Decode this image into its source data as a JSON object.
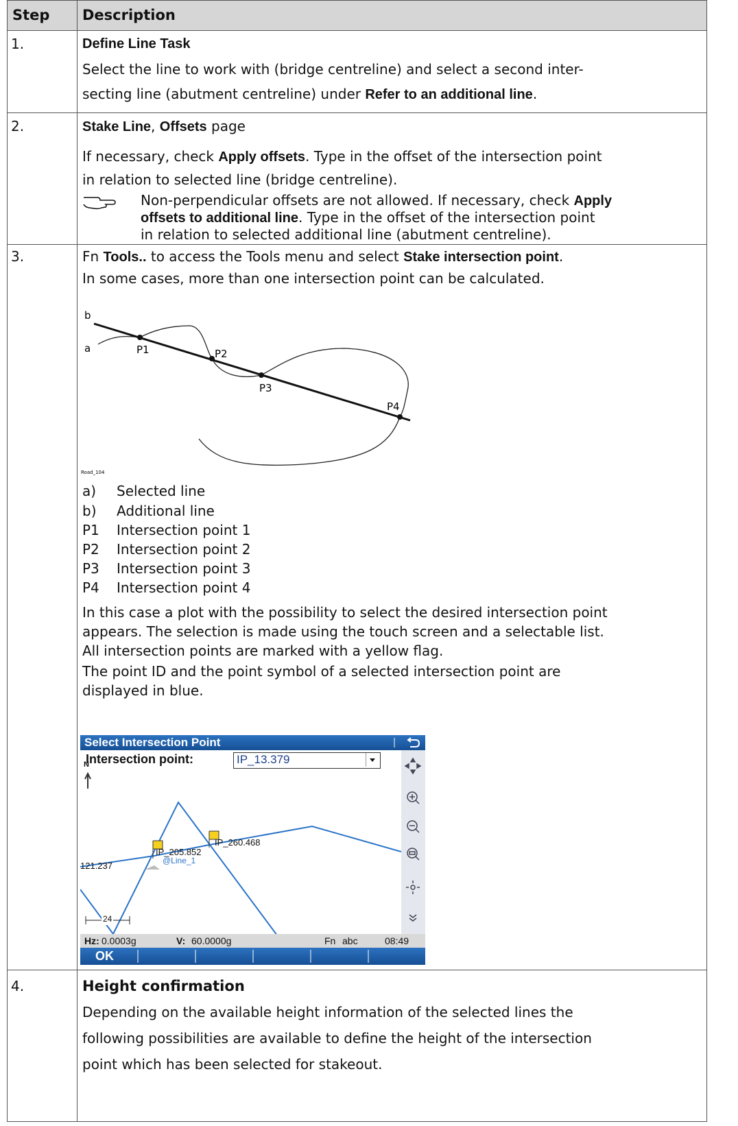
{
  "header": {
    "step": "Step",
    "description": "Description"
  },
  "rows": [
    {
      "step": "1.",
      "title": "Define Line Task",
      "lines": [
        [
          "Select the line to work with (bridge centreline) and select a second inter-"
        ],
        [
          "secting line (abutment centreline) under ",
          "Refer to an additional line",
          "."
        ]
      ]
    },
    {
      "step": "2.",
      "title": [
        "Stake Line",
        ", ",
        "Offsets",
        " page"
      ],
      "lines": [
        [
          "If necessary, check ",
          "Apply offsets",
          ". Type in the offset of the intersection point"
        ],
        [
          "in relation to selected line (bridge centreline)."
        ]
      ],
      "note": [
        [
          "Non-perpendicular offsets are not allowed. If necessary, check ",
          "Apply"
        ],
        [
          "offsets to additional line",
          ". Type in the offset of the intersection point"
        ],
        [
          "in relation to selected additional line (abutment centreline)."
        ]
      ]
    },
    {
      "step": "3.",
      "lines": [
        [
          "Fn ",
          "Tools..",
          " to access the Tools menu and select ",
          "Stake intersection point",
          "."
        ],
        [
          "In some cases, more than one intersection point can be calculated."
        ]
      ],
      "diagram": {
        "labels": [
          "b",
          "a",
          "P1",
          "P2",
          "P3",
          "P4"
        ],
        "caption": "Road_104"
      },
      "legend": [
        {
          "key": "a)",
          "text": "Selected line"
        },
        {
          "key": "b)",
          "text": "Additional line"
        },
        {
          "key": "P1",
          "text": "Intersection point 1"
        },
        {
          "key": "P2",
          "text": "Intersection point 2"
        },
        {
          "key": "P3",
          "text": "Intersection point 3"
        },
        {
          "key": "P4",
          "text": "Intersection point 4"
        }
      ],
      "paragraph": [
        "In this case a plot with the possibility to select the desired intersection point",
        "appears. The selection is made using the touch screen and a selectable list.",
        "All intersection points are marked with a yellow flag.",
        "The point ID and the point symbol of a selected intersection point are",
        "displayed in blue."
      ],
      "screen": {
        "title": "Select Intersection Point",
        "field_label": "Intersection point:",
        "field_value": "IP_13.379",
        "north": "N",
        "map_labels": [
          "IP_205.852",
          "@Line_1",
          "IP_260.468",
          "121.237"
        ],
        "scale": "24",
        "status": [
          "Hz:",
          "0.0003g",
          "V:",
          "60.0000g",
          "Fn",
          "abc",
          "08:49"
        ],
        "button": "OK"
      }
    },
    {
      "step": "4.",
      "title": "Height confirmation",
      "lines": [
        "Depending on the available height information of the selected lines the",
        "following possibilities are available to define the height of the intersection",
        "point which has been selected for stakeout."
      ]
    }
  ]
}
